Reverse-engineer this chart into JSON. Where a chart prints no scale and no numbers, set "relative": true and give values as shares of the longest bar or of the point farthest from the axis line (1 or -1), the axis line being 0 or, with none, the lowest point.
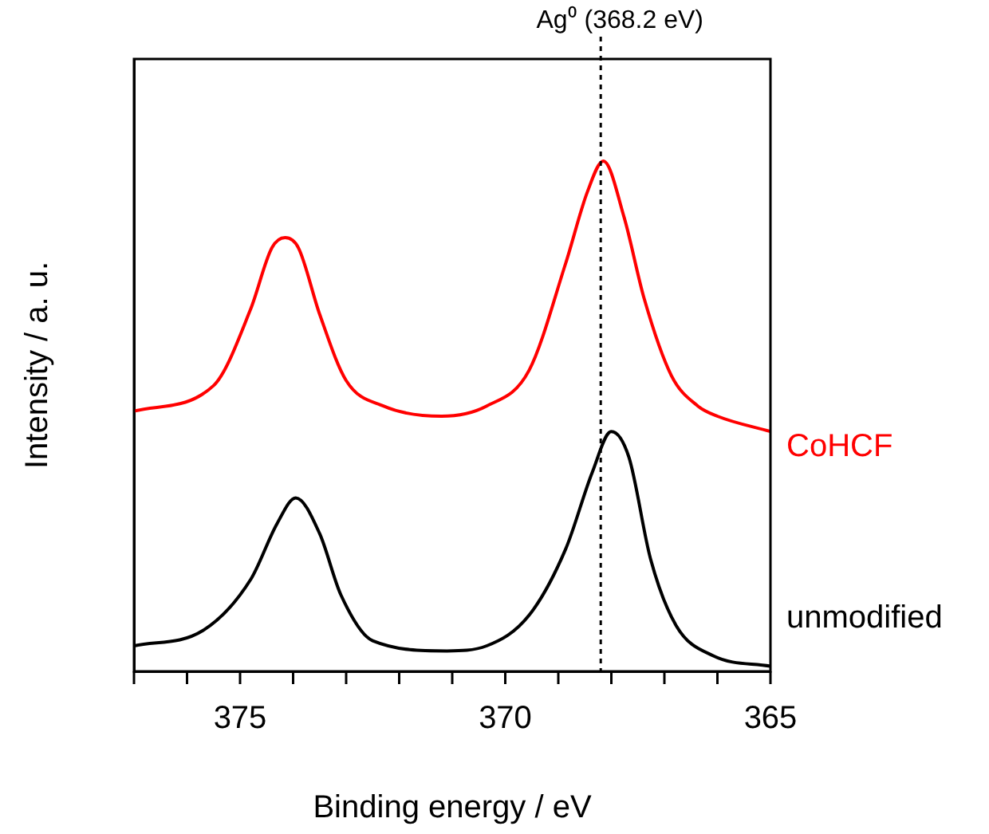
{
  "chart_data": {
    "type": "line",
    "xlabel": "Binding energy / eV",
    "ylabel": "Intensity / a. u.",
    "relative": true,
    "xlim": [
      377,
      365
    ],
    "xticks": [
      {
        "value": 377,
        "label": null
      },
      {
        "value": 376,
        "label": null
      },
      375,
      {
        "value": 374,
        "label": null
      },
      {
        "value": 373,
        "label": null
      },
      {
        "value": 372,
        "label": null
      },
      {
        "value": 371,
        "label": null
      },
      370,
      {
        "value": 369,
        "label": null
      },
      {
        "value": 368,
        "label": null
      },
      {
        "value": 367,
        "label": null
      },
      {
        "value": 366,
        "label": null
      },
      365
    ],
    "tick_labels": "x",
    "legend": false,
    "grid": false,
    "marker": "none",
    "line_style": "solid",
    "series": [
      {
        "name": "CoHCF",
        "color": "#ff0000",
        "x": [
          377,
          375.5,
          374.8,
          374.4,
          374.15,
          373.9,
          373.5,
          373.0,
          372.3,
          371.2,
          370.35,
          369.55,
          368.86,
          368.45,
          368.15,
          367.76,
          367.38,
          366.87,
          366.37,
          366.0,
          365
        ],
        "values": [
          0.51,
          0.56,
          0.71,
          0.83,
          0.85,
          0.83,
          0.7,
          0.57,
          0.52,
          0.5,
          0.52,
          0.59,
          0.8,
          0.94,
          1,
          0.89,
          0.73,
          0.58,
          0.52,
          0.5,
          0.47
        ]
      },
      {
        "name": "unmodified",
        "color": "#000000",
        "x": [
          377,
          375.7,
          374.8,
          374.3,
          373.95,
          373.5,
          373.1,
          372.5,
          371.1,
          370.35,
          369.55,
          368.86,
          368.36,
          368.0,
          367.67,
          367.26,
          366.78,
          366.07,
          365
        ],
        "values": [
          0.05,
          0.08,
          0.18,
          0.29,
          0.34,
          0.27,
          0.15,
          0.06,
          0.04,
          0.05,
          0.11,
          0.24,
          0.39,
          0.47,
          0.42,
          0.22,
          0.09,
          0.03,
          0.01
        ]
      }
    ],
    "ref_lines": [
      {
        "axis": "x",
        "value": 368.2,
        "label": "Ag⁰ (368.2 eV)",
        "color": "#000000",
        "line_style": "dotted"
      }
    ]
  }
}
